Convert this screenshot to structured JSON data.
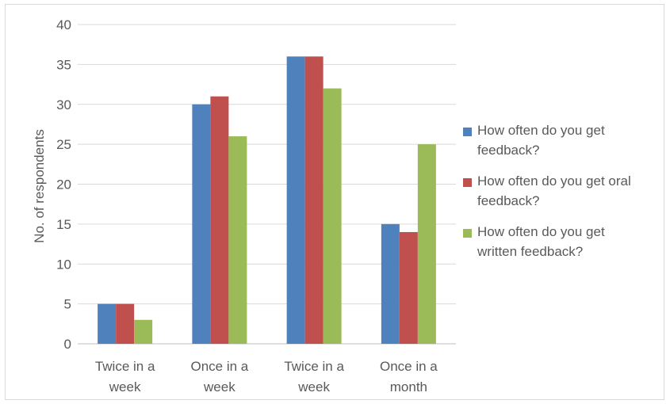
{
  "chart_data": {
    "type": "bar",
    "title": "",
    "xlabel": "",
    "ylabel": "No. of respondents",
    "ylim": [
      0,
      40
    ],
    "yticks": [
      "0",
      "5",
      "10",
      "15",
      "20",
      "25",
      "30",
      "35",
      "40"
    ],
    "categories": [
      [
        "Twice in a",
        "week"
      ],
      [
        "Once in a",
        "week"
      ],
      [
        "Twice in a",
        "week"
      ],
      [
        "Once in a",
        "month"
      ]
    ],
    "series": [
      {
        "name": "How often do you get feedback?",
        "label_lines": [
          "How often do you get",
          "feedback?"
        ],
        "color": "#4f81bd",
        "values": [
          5,
          30,
          36,
          15
        ]
      },
      {
        "name": "How often do you get oral feedback?",
        "label_lines": [
          "How often do you get oral",
          "feedback?"
        ],
        "color": "#c0504d",
        "values": [
          5,
          31,
          36,
          14
        ]
      },
      {
        "name": "How often do you get written feedback?",
        "label_lines": [
          "How often do you get",
          "written feedback?"
        ],
        "color": "#9bbb59",
        "values": [
          3,
          26,
          32,
          25
        ]
      }
    ],
    "grid": true,
    "legend_position": "right"
  }
}
